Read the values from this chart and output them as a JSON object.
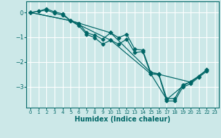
{
  "xlabel": "Humidex (Indice chaleur)",
  "bg_color": "#cce8e8",
  "grid_color": "#ffffff",
  "line_color": "#006666",
  "xlim": [
    -0.5,
    23.5
  ],
  "ylim": [
    -3.85,
    0.45
  ],
  "yticks": [
    0,
    -1,
    -2,
    -3
  ],
  "xticks": [
    0,
    1,
    2,
    3,
    4,
    5,
    6,
    7,
    8,
    9,
    10,
    11,
    12,
    13,
    14,
    15,
    16,
    17,
    18,
    19,
    20,
    21,
    22,
    23
  ],
  "line1_x": [
    0,
    1,
    2,
    3,
    4,
    5,
    6,
    7,
    8,
    9,
    10,
    11,
    12,
    13,
    14,
    15,
    16,
    17,
    18,
    19,
    20,
    21,
    22
  ],
  "line1_y": [
    0.0,
    0.05,
    0.15,
    0.02,
    -0.05,
    -0.33,
    -0.43,
    -0.82,
    -0.92,
    -1.08,
    -0.82,
    -1.02,
    -0.88,
    -1.48,
    -1.52,
    -2.42,
    -2.48,
    -3.48,
    -3.48,
    -2.92,
    -2.82,
    -2.58,
    -2.32
  ],
  "line2_x": [
    0,
    1,
    2,
    3,
    4,
    5,
    6,
    7,
    8,
    9,
    10,
    11,
    12,
    13,
    14,
    15,
    16,
    17,
    18,
    19,
    20,
    21,
    22
  ],
  "line2_y": [
    0.0,
    0.05,
    0.1,
    -0.03,
    -0.1,
    -0.33,
    -0.53,
    -0.88,
    -1.02,
    -1.28,
    -1.12,
    -1.28,
    -1.08,
    -1.62,
    -1.58,
    -2.48,
    -2.52,
    -3.58,
    -3.58,
    -3.02,
    -2.88,
    -2.62,
    -2.38
  ],
  "line3_x": [
    0,
    5,
    10,
    15,
    20,
    22
  ],
  "line3_y": [
    0.0,
    -0.33,
    -0.82,
    -2.42,
    -2.82,
    -2.32
  ],
  "line4_x": [
    0,
    5,
    10,
    15,
    17,
    19,
    21,
    22
  ],
  "line4_y": [
    0.0,
    -0.33,
    -1.12,
    -2.48,
    -3.52,
    -2.98,
    -2.58,
    -2.32
  ]
}
